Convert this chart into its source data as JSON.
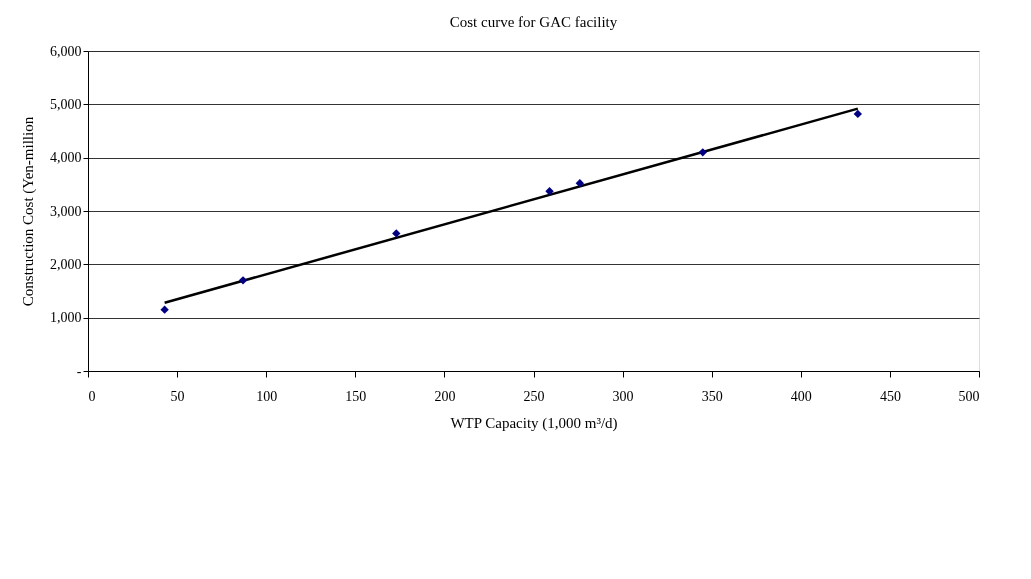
{
  "chart_data": {
    "type": "scatter",
    "title": "Cost curve for GAC facility",
    "xlabel": "WTP Capacity (1,000 m³/d)",
    "ylabel": "Construction Cost (Yen-million",
    "series": [
      {
        "color": "#000080",
        "marker": "diamond",
        "x": [
          43,
          87,
          173,
          259,
          276,
          345,
          432
        ],
        "values": [
          1150,
          1700,
          2580,
          3370,
          3520,
          4100,
          4820
        ]
      },
      {
        "type": "line",
        "color": "#000000",
        "line_style": "solid",
        "x": [
          43,
          432
        ],
        "values": [
          1280,
          4920
        ]
      }
    ],
    "xlim": [
      0,
      500
    ],
    "xticks": [
      0,
      50,
      100,
      150,
      200,
      250,
      300,
      350,
      400,
      450,
      500
    ],
    "ylim": [
      0,
      6000
    ],
    "yticks": [
      {
        "value": 0,
        "label": "-"
      },
      {
        "value": 1000,
        "label": "1,000"
      },
      {
        "value": 2000,
        "label": "2,000"
      },
      {
        "value": 3000,
        "label": "3,000"
      },
      {
        "value": 4000,
        "label": "4,000"
      },
      {
        "value": 5000,
        "label": "5,000"
      },
      {
        "value": 6000,
        "label": "6,000"
      }
    ],
    "grid": "y"
  }
}
